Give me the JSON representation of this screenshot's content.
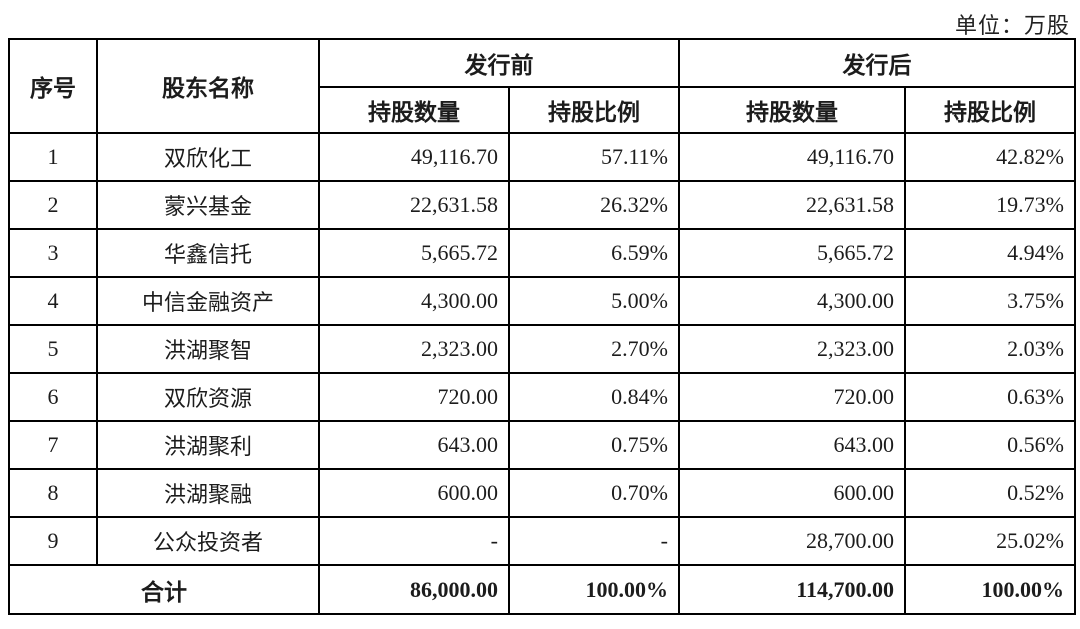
{
  "unit_label": "单位：万股",
  "table": {
    "headers": {
      "index": "序号",
      "shareholder": "股东名称",
      "before": "发行前",
      "after": "发行后",
      "shares": "持股数量",
      "ratio": "持股比例"
    },
    "rows": [
      {
        "no": "1",
        "name": "双欣化工",
        "before_shares": "49,116.70",
        "before_ratio": "57.11%",
        "after_shares": "49,116.70",
        "after_ratio": "42.82%"
      },
      {
        "no": "2",
        "name": "蒙兴基金",
        "before_shares": "22,631.58",
        "before_ratio": "26.32%",
        "after_shares": "22,631.58",
        "after_ratio": "19.73%"
      },
      {
        "no": "3",
        "name": "华鑫信托",
        "before_shares": "5,665.72",
        "before_ratio": "6.59%",
        "after_shares": "5,665.72",
        "after_ratio": "4.94%"
      },
      {
        "no": "4",
        "name": "中信金融资产",
        "before_shares": "4,300.00",
        "before_ratio": "5.00%",
        "after_shares": "4,300.00",
        "after_ratio": "3.75%"
      },
      {
        "no": "5",
        "name": "洪湖聚智",
        "before_shares": "2,323.00",
        "before_ratio": "2.70%",
        "after_shares": "2,323.00",
        "after_ratio": "2.03%"
      },
      {
        "no": "6",
        "name": "双欣资源",
        "before_shares": "720.00",
        "before_ratio": "0.84%",
        "after_shares": "720.00",
        "after_ratio": "0.63%"
      },
      {
        "no": "7",
        "name": "洪湖聚利",
        "before_shares": "643.00",
        "before_ratio": "0.75%",
        "after_shares": "643.00",
        "after_ratio": "0.56%"
      },
      {
        "no": "8",
        "name": "洪湖聚融",
        "before_shares": "600.00",
        "before_ratio": "0.70%",
        "after_shares": "600.00",
        "after_ratio": "0.52%"
      },
      {
        "no": "9",
        "name": "公众投资者",
        "before_shares": "-",
        "before_ratio": "-",
        "after_shares": "28,700.00",
        "after_ratio": "25.02%"
      }
    ],
    "total": {
      "label": "合计",
      "before_shares": "86,000.00",
      "before_ratio": "100.00%",
      "after_shares": "114,700.00",
      "after_ratio": "100.00%"
    }
  }
}
